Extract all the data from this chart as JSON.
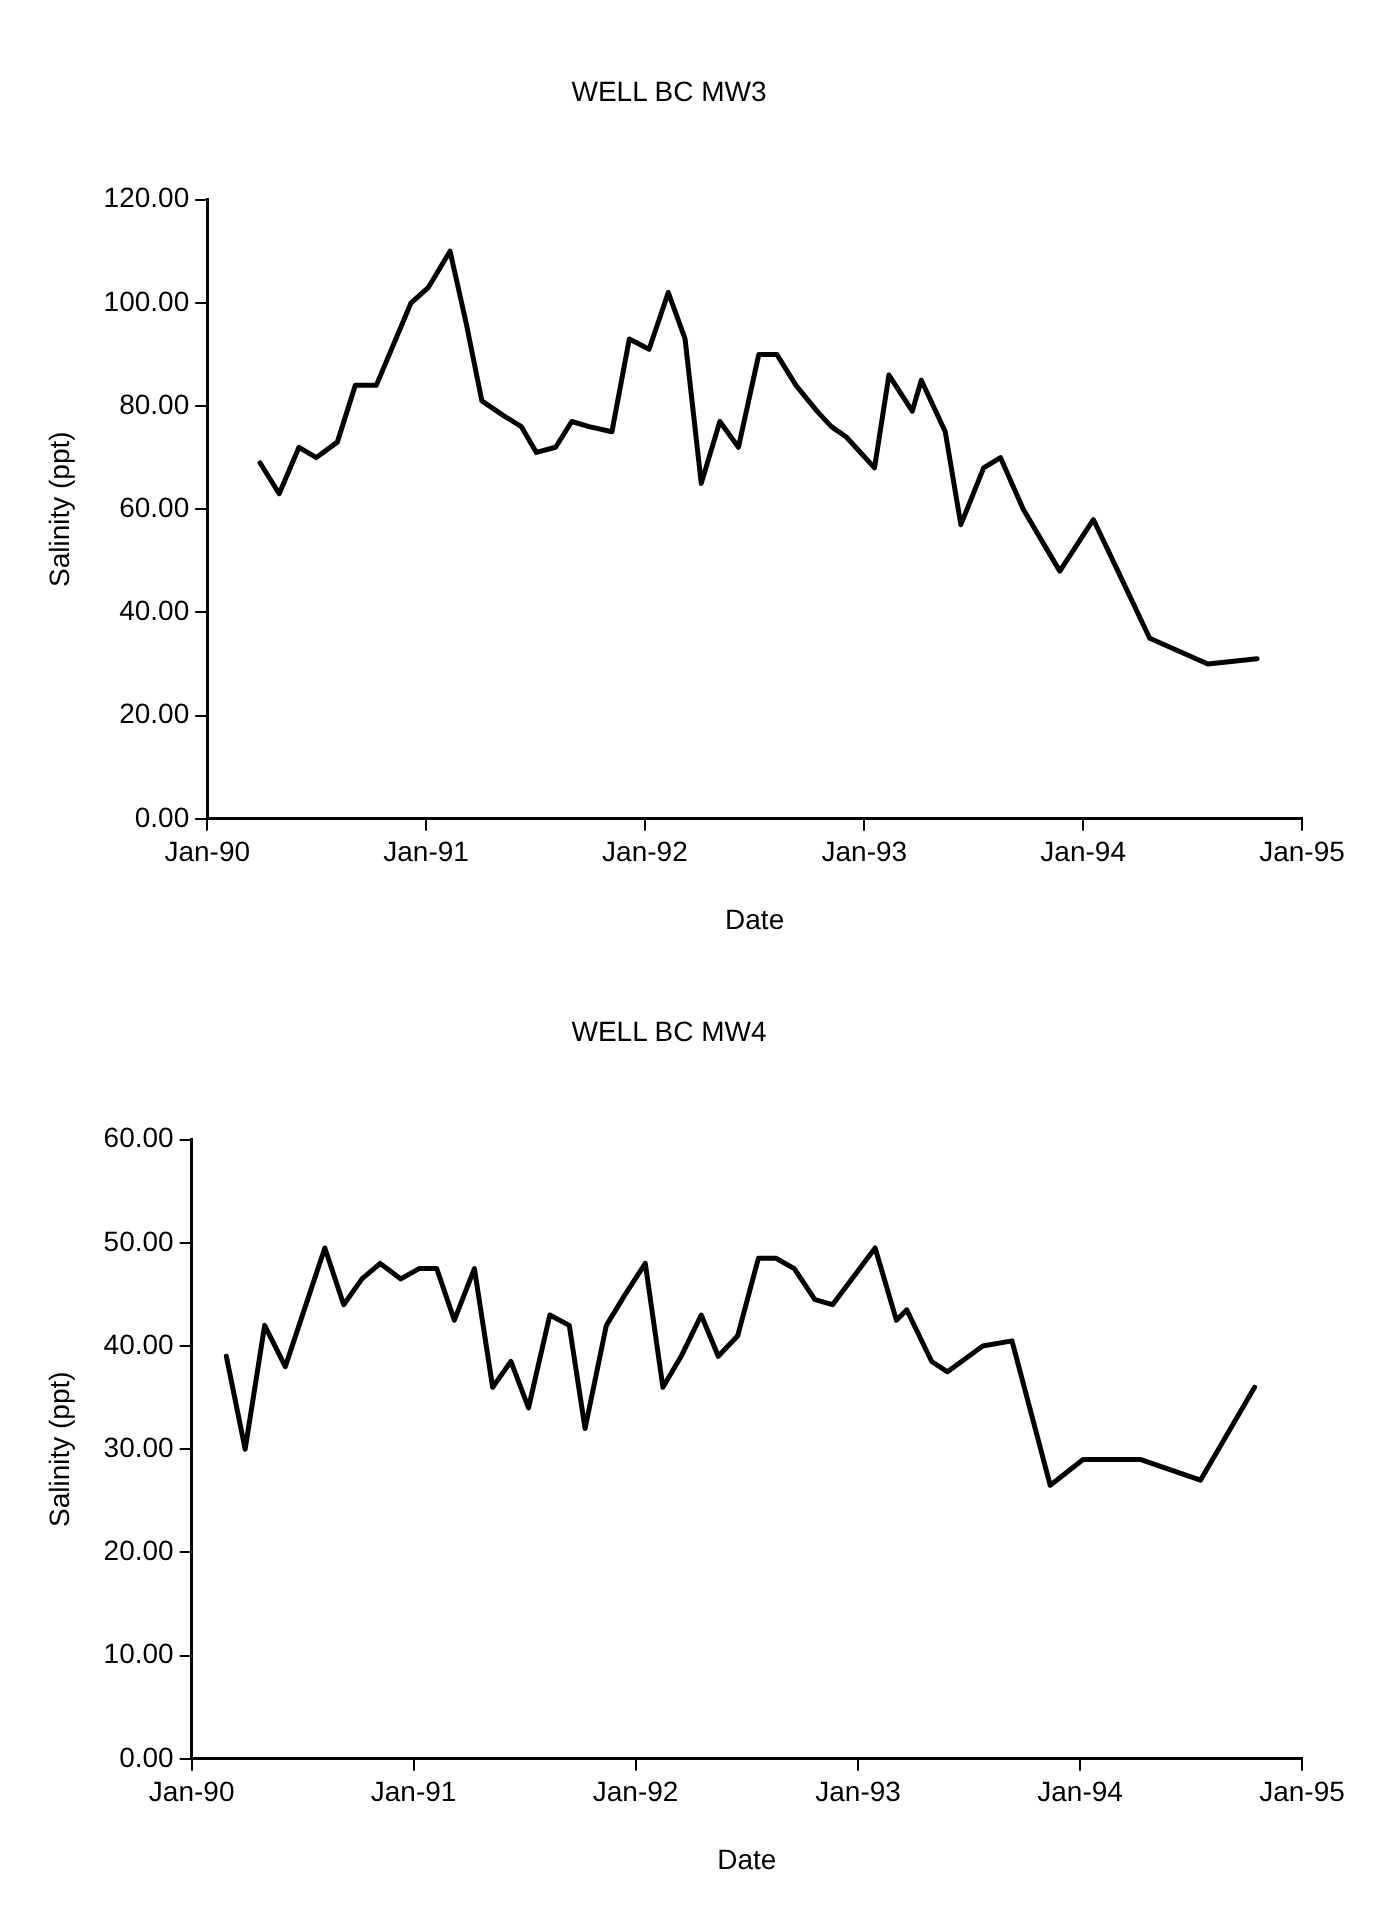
{
  "chart_data": [
    {
      "type": "line",
      "title": "WELL BC MW3",
      "xlabel": "Date",
      "ylabel": "Salinity (ppt)",
      "xlim": [
        "1990-01-01",
        "1995-01-01"
      ],
      "xticks": [
        {
          "value": "1990-01-01",
          "label": "Jan-90"
        },
        {
          "value": "1991-01-01",
          "label": "Jan-91"
        },
        {
          "value": "1992-01-01",
          "label": "Jan-92"
        },
        {
          "value": "1993-01-01",
          "label": "Jan-93"
        },
        {
          "value": "1994-01-01",
          "label": "Jan-94"
        },
        {
          "value": "1995-01-01",
          "label": "Jan-95"
        }
      ],
      "ylim": [
        0,
        120
      ],
      "yticks": [
        {
          "value": 0,
          "label": "0.00"
        },
        {
          "value": 20,
          "label": "20.00"
        },
        {
          "value": 40,
          "label": "40.00"
        },
        {
          "value": 60,
          "label": "60.00"
        },
        {
          "value": 80,
          "label": "80.00"
        },
        {
          "value": 100,
          "label": "100.00"
        },
        {
          "value": 120,
          "label": "120.00"
        }
      ],
      "line_style": "solid",
      "series": [
        {
          "color": "#000000",
          "x": [
            "1990-03-30",
            "1990-05-01",
            "1990-06-03",
            "1990-07-02",
            "1990-08-06",
            "1990-09-05",
            "1990-10-10",
            "1990-12-07",
            "1991-01-05",
            "1991-02-10",
            "1991-03-09",
            "1991-04-04",
            "1991-05-12",
            "1991-06-09",
            "1991-07-04",
            "1991-08-05",
            "1991-09-01",
            "1991-09-30",
            "1991-11-07",
            "1991-12-06",
            "1992-01-08",
            "1992-02-09",
            "1992-03-08",
            "1992-04-04",
            "1992-05-05",
            "1992-06-05",
            "1992-07-09",
            "1992-08-08",
            "1992-09-09",
            "1992-10-14",
            "1992-11-07",
            "1992-12-02",
            "1993-01-18",
            "1993-02-11",
            "1993-03-22",
            "1993-04-06",
            "1993-05-16",
            "1993-06-11",
            "1993-07-19",
            "1993-08-16",
            "1993-09-23",
            "1993-11-23",
            "1994-01-18",
            "1994-02-28",
            "1994-04-22",
            "1994-07-28",
            "1994-10-18"
          ],
          "values": [
            69,
            63,
            72,
            70,
            73,
            84,
            84,
            100,
            103,
            110,
            96,
            81,
            78,
            76,
            71,
            72,
            77,
            76,
            75,
            93,
            91,
            102,
            93,
            65,
            77,
            72,
            90,
            90,
            84,
            79,
            76,
            74,
            68,
            86,
            79,
            85,
            75,
            57,
            68,
            70,
            60,
            48,
            58,
            48,
            35,
            30,
            31
          ]
        }
      ]
    },
    {
      "type": "line",
      "title": "WELL BC MW4",
      "xlabel": "Date",
      "ylabel": "Salinity (ppt)",
      "xlim": [
        "1990-01-01",
        "1995-01-01"
      ],
      "xticks": [
        {
          "value": "1990-01-01",
          "label": "Jan-90"
        },
        {
          "value": "1991-01-01",
          "label": "Jan-91"
        },
        {
          "value": "1992-01-01",
          "label": "Jan-92"
        },
        {
          "value": "1993-01-01",
          "label": "Jan-93"
        },
        {
          "value": "1994-01-01",
          "label": "Jan-94"
        },
        {
          "value": "1995-01-01",
          "label": "Jan-95"
        }
      ],
      "ylim": [
        0,
        60
      ],
      "yticks": [
        {
          "value": 0,
          "label": "0.00"
        },
        {
          "value": 10,
          "label": "10.00"
        },
        {
          "value": 20,
          "label": "20.00"
        },
        {
          "value": 30,
          "label": "30.00"
        },
        {
          "value": 40,
          "label": "40.00"
        },
        {
          "value": 50,
          "label": "50.00"
        },
        {
          "value": 60,
          "label": "60.00"
        }
      ],
      "line_style": "solid",
      "series": [
        {
          "color": "#000000",
          "x": [
            "1990-02-27",
            "1990-03-30",
            "1990-05-01",
            "1990-06-04",
            "1990-08-08",
            "1990-09-08",
            "1990-10-08",
            "1990-11-07",
            "1990-12-11",
            "1991-01-10",
            "1991-02-08",
            "1991-03-09",
            "1991-04-11",
            "1991-05-11",
            "1991-06-10",
            "1991-07-09",
            "1991-08-13",
            "1991-09-14",
            "1991-10-10",
            "1991-11-14",
            "1991-12-15",
            "1992-01-17",
            "1992-02-15",
            "1992-03-16",
            "1992-04-18",
            "1992-05-16",
            "1992-06-17",
            "1992-07-21",
            "1992-08-19",
            "1992-09-18",
            "1992-10-22",
            "1992-11-20",
            "1993-01-29",
            "1993-03-05",
            "1993-03-22",
            "1993-05-02",
            "1993-05-28",
            "1993-07-25",
            "1993-09-11",
            "1993-11-13",
            "1994-01-06",
            "1994-03-07",
            "1994-04-11",
            "1994-07-18",
            "1994-10-15"
          ],
          "values": [
            39,
            30,
            42,
            38,
            49.5,
            44,
            46.5,
            48,
            46.5,
            47.5,
            47.5,
            42.5,
            47.5,
            36,
            38.5,
            34,
            43,
            42,
            32,
            42,
            45,
            48,
            36,
            39,
            43,
            39,
            41,
            48.5,
            48.5,
            47.5,
            44.5,
            44,
            49.5,
            42.5,
            43.5,
            38.5,
            37.5,
            40,
            40.5,
            26.5,
            29,
            29,
            29,
            27,
            36
          ]
        }
      ]
    }
  ]
}
